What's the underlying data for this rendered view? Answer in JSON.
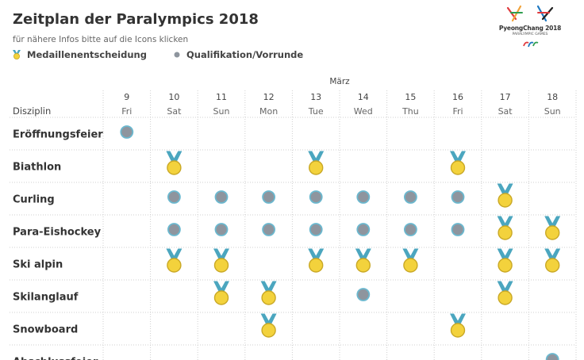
{
  "header": {
    "title": "Zeitplan der Paralympics 2018",
    "subtitle": "für nähere Infos bitte auf die Icons klicken",
    "legend": {
      "medal_label": "Medaillenentscheidung",
      "qualification_label": "Qualifikation/Vorrunde"
    },
    "logo": {
      "main_text": "PyeongChang 2018",
      "sub_text": "PARALYMPIC GAMES"
    }
  },
  "colors": {
    "medal_gold": "#F3D23C",
    "medal_rim": "#C9A826",
    "ribbon": "#4BA6BF",
    "dot": "#8E959E",
    "dot_ring": "#6BB8CF",
    "grid": "#CFCFCF"
  },
  "chart_data": {
    "type": "table",
    "month_label": "März",
    "row_header": "Disziplin",
    "days": [
      {
        "day": "9",
        "weekday": "Fri"
      },
      {
        "day": "10",
        "weekday": "Sat"
      },
      {
        "day": "11",
        "weekday": "Sun"
      },
      {
        "day": "12",
        "weekday": "Mon"
      },
      {
        "day": "13",
        "weekday": "Tue"
      },
      {
        "day": "14",
        "weekday": "Wed"
      },
      {
        "day": "15",
        "weekday": "Thu"
      },
      {
        "day": "16",
        "weekday": "Fri"
      },
      {
        "day": "17",
        "weekday": "Sat"
      },
      {
        "day": "18",
        "weekday": "Sun"
      }
    ],
    "rows": [
      {
        "name": "Eröffnungsfeier",
        "cells": [
          "Q",
          "",
          "",
          "",
          "",
          "",
          "",
          "",
          "",
          ""
        ]
      },
      {
        "name": "Biathlon",
        "cells": [
          "",
          "M",
          "",
          "",
          "M",
          "",
          "",
          "M",
          "",
          ""
        ]
      },
      {
        "name": "Curling",
        "cells": [
          "",
          "Q",
          "Q",
          "Q",
          "Q",
          "Q",
          "Q",
          "Q",
          "M",
          ""
        ]
      },
      {
        "name": "Para-Eishockey",
        "cells": [
          "",
          "Q",
          "Q",
          "Q",
          "Q",
          "Q",
          "Q",
          "Q",
          "M",
          "M"
        ]
      },
      {
        "name": "Ski alpin",
        "cells": [
          "",
          "M",
          "M",
          "",
          "M",
          "M",
          "M",
          "",
          "M",
          "M"
        ]
      },
      {
        "name": "Skilanglauf",
        "cells": [
          "",
          "",
          "M",
          "M",
          "",
          "Q",
          "",
          "",
          "M",
          ""
        ]
      },
      {
        "name": "Snowboard",
        "cells": [
          "",
          "",
          "",
          "M",
          "",
          "",
          "",
          "M",
          "",
          ""
        ]
      },
      {
        "name": "Abschlussfeier",
        "cells": [
          "",
          "",
          "",
          "",
          "",
          "",
          "",
          "",
          "",
          "Q"
        ]
      }
    ]
  }
}
